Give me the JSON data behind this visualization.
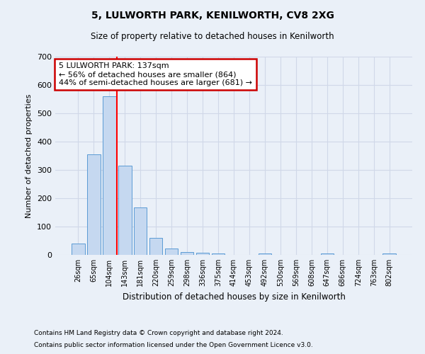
{
  "title": "5, LULWORTH PARK, KENILWORTH, CV8 2XG",
  "subtitle": "Size of property relative to detached houses in Kenilworth",
  "xlabel": "Distribution of detached houses by size in Kenilworth",
  "ylabel": "Number of detached properties",
  "bar_labels": [
    "26sqm",
    "65sqm",
    "104sqm",
    "143sqm",
    "181sqm",
    "220sqm",
    "259sqm",
    "298sqm",
    "336sqm",
    "375sqm",
    "414sqm",
    "453sqm",
    "492sqm",
    "530sqm",
    "569sqm",
    "608sqm",
    "647sqm",
    "686sqm",
    "724sqm",
    "763sqm",
    "802sqm"
  ],
  "bar_values": [
    40,
    355,
    560,
    315,
    168,
    60,
    22,
    10,
    7,
    5,
    0,
    0,
    5,
    0,
    0,
    0,
    5,
    0,
    0,
    0,
    5
  ],
  "bar_color": "#c5d8f0",
  "bar_edge_color": "#5b9bd5",
  "grid_color": "#d0d8e8",
  "background_color": "#eaf0f8",
  "red_line_x": 2.5,
  "annotation_text": "5 LULWORTH PARK: 137sqm\n← 56% of detached houses are smaller (864)\n44% of semi-detached houses are larger (681) →",
  "annotation_box_color": "#ffffff",
  "annotation_box_edge": "#cc0000",
  "footer1": "Contains HM Land Registry data © Crown copyright and database right 2024.",
  "footer2": "Contains public sector information licensed under the Open Government Licence v3.0.",
  "ylim": [
    0,
    700
  ],
  "yticks": [
    0,
    100,
    200,
    300,
    400,
    500,
    600,
    700
  ]
}
